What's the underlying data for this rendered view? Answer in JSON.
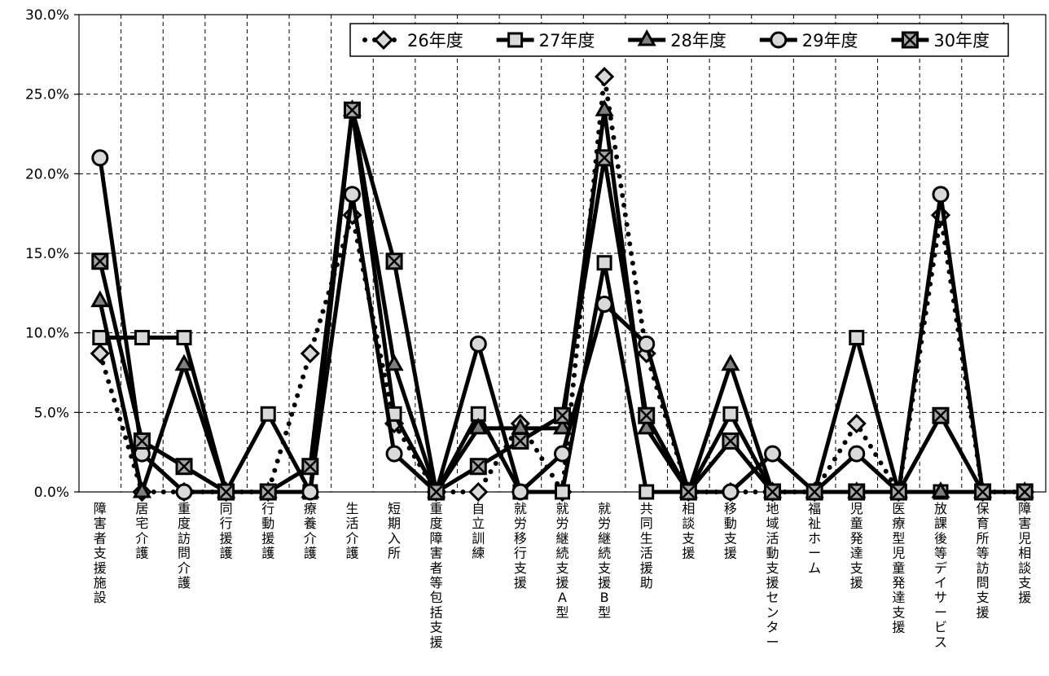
{
  "chart_data": {
    "type": "line",
    "title": "",
    "xlabel": "",
    "ylabel": "",
    "ylim": [
      0,
      30
    ],
    "y_ticks": [
      "0.0%",
      "5.0%",
      "10.0%",
      "15.0%",
      "20.0%",
      "25.0%",
      "30.0%"
    ],
    "grid": true,
    "legend_position": "top-right",
    "categories": [
      "障害者支援施設",
      "居宅介護",
      "重度訪問介護",
      "同行援護",
      "行動援護",
      "療養介護",
      "生活介護",
      "短期入所",
      "重度障害者等包括支援",
      "自立訓練",
      "就労移行支援",
      "就労継続支援A型",
      "就労継続支援B型",
      "共同生活援助",
      "相談支援",
      "移動支援",
      "地域活動支援センター",
      "福祉ホーム",
      "児童発達支援",
      "医療型児童発達支援",
      "放課後等デイサービス",
      "保育所等訪問支援",
      "障害児相談支援"
    ],
    "series": [
      {
        "name": "26年度",
        "marker": "diamond",
        "line": "dotted",
        "values": [
          8.7,
          0,
          0,
          0,
          0,
          8.7,
          17.4,
          4.3,
          0,
          0,
          4.3,
          0,
          26.1,
          8.7,
          0,
          0,
          0,
          0,
          4.3,
          0,
          17.4,
          0,
          0
        ]
      },
      {
        "name": "27年度",
        "marker": "square",
        "line": "solid",
        "values": [
          9.7,
          9.7,
          9.7,
          0,
          4.9,
          0,
          24.0,
          4.9,
          0,
          4.9,
          0,
          0,
          14.4,
          0,
          0,
          4.9,
          0,
          0,
          9.7,
          0,
          0,
          0,
          0
        ]
      },
      {
        "name": "28年度",
        "marker": "triangle",
        "line": "solid",
        "values": [
          12.0,
          0,
          8.0,
          0,
          0,
          0,
          24.0,
          8.0,
          0,
          4.0,
          4.0,
          4.0,
          24.0,
          4.0,
          0,
          8.0,
          0,
          0,
          0,
          0,
          0,
          0,
          0
        ]
      },
      {
        "name": "29年度",
        "marker": "circle",
        "line": "solid",
        "values": [
          21.0,
          2.4,
          0,
          0,
          0,
          0,
          18.7,
          2.4,
          0,
          9.3,
          0,
          2.4,
          11.8,
          9.3,
          0,
          0,
          2.4,
          0,
          2.4,
          0,
          18.7,
          0,
          0
        ]
      },
      {
        "name": "30年度",
        "marker": "square-x",
        "line": "solid",
        "values": [
          14.5,
          3.2,
          1.6,
          0,
          0,
          1.6,
          24.0,
          14.5,
          0,
          1.6,
          3.2,
          4.8,
          21.0,
          4.8,
          0,
          3.2,
          0,
          0,
          0,
          0,
          4.8,
          0,
          0
        ]
      }
    ]
  }
}
